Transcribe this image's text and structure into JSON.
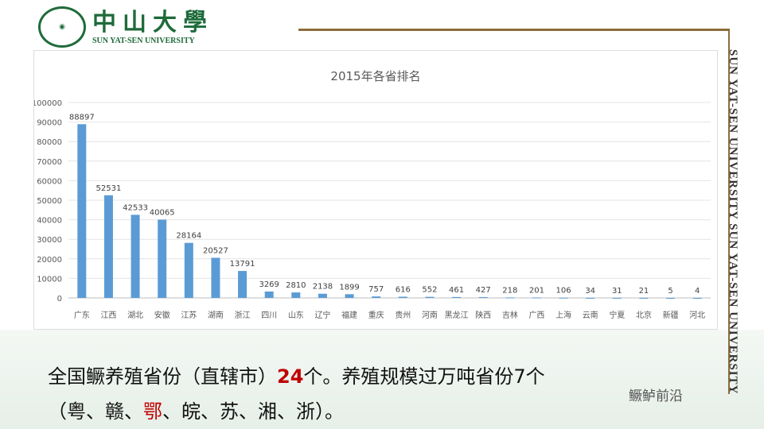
{
  "header": {
    "logo_cn": "中山大學",
    "logo_en": "SUN YAT-SEN UNIVERSITY",
    "side_text": "SUN YAT-SEN UNIVERSITY SUN YAT-SEN UNIVERSITY"
  },
  "chart_data": {
    "type": "bar",
    "title": "2015年各省排名",
    "ylim": [
      0,
      100000
    ],
    "yticks": [
      0,
      10000,
      20000,
      30000,
      40000,
      50000,
      60000,
      70000,
      80000,
      90000,
      100000
    ],
    "grid": true,
    "bar_color": "#5b9bd5",
    "categories": [
      "广东",
      "江西",
      "湖北",
      "安徽",
      "江苏",
      "湖南",
      "浙江",
      "四川",
      "山东",
      "辽宁",
      "福建",
      "重庆",
      "贵州",
      "河南",
      "黑龙江",
      "陕西",
      "吉林",
      "广西",
      "上海",
      "云南",
      "宁夏",
      "北京",
      "新疆",
      "河北"
    ],
    "values": [
      88897,
      52531,
      42533,
      40065,
      28164,
      20527,
      13791,
      3269,
      2810,
      2138,
      1899,
      757,
      616,
      552,
      461,
      427,
      218,
      201,
      106,
      34,
      31,
      21,
      5,
      4
    ]
  },
  "caption": {
    "line1_a": "全国鳜养殖省份（直辖市）",
    "line1_num": "24",
    "line1_b": "个。养殖规模过万吨省份7个",
    "line2_a": "（粤、赣、",
    "line2_red": "鄂",
    "line2_b": "、皖、苏、湘、浙）。"
  },
  "watermark": "鳜鲈前沿"
}
